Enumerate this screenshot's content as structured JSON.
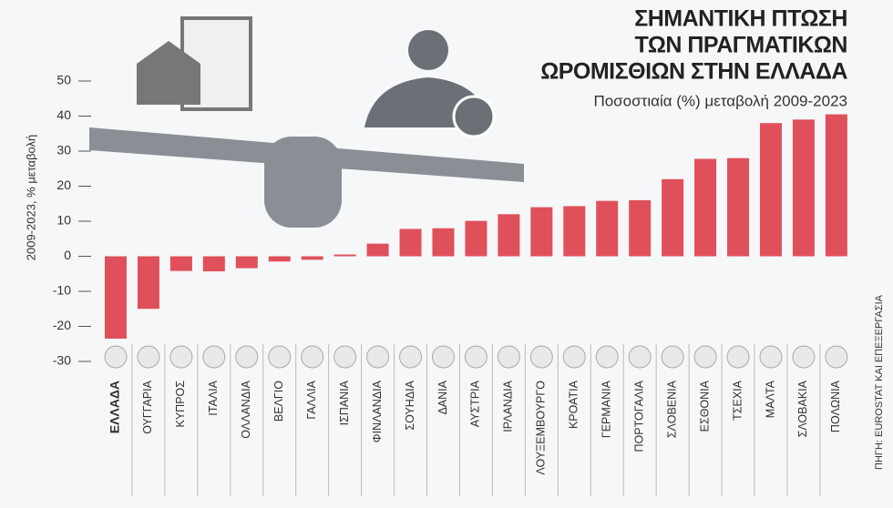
{
  "chart_data": {
    "type": "bar",
    "title": [
      "ΣΗΜΑΝΤΙΚΗ ΠΤΩΣΗ",
      "ΤΩΝ ΠΡΑΓΜΑΤΙΚΩΝ",
      "ΩΡΟΜΙΣΘΙΩΝ ΣΤΗΝ ΕΛΛΑΔΑ"
    ],
    "subtitle": "Ποσοστιαία (%) μεταβολή 2009-2023",
    "y_label": "2009-2023, % μεταβολή",
    "source": "ΠΗΓΗ: EUROSTAT ΚΑΙ ΕΠΕΞΕΡΓΑΣΙΑ",
    "categories": [
      "ΕΛΛΑΔΑ",
      "ΟΥΓΓΑΡΙΑ",
      "ΚΥΠΡΟΣ",
      "ΙΤΑΛΙΑ",
      "ΟΛΛΑΝΔΙΑ",
      "ΒΕΛΓΙΟ",
      "ΓΑΛΛΙΑ",
      "ΙΣΠΑΝΙΑ",
      "ΦΙΝΛΑΝΔΙΑ",
      "ΣΟΥΗΔΙΑ",
      "ΔΑΝΙΑ",
      "ΑΥΣΤΡΙΑ",
      "ΙΡΛΑΝΔΙΑ",
      "ΛΟΥΞΕΜΒΟΥΡΓΟ",
      "ΚΡΟΑΤΙΑ",
      "ΓΕΡΜΑΝΙΑ",
      "ΠΟΡΤΟΓΑΛΙΑ",
      "ΣΛΟΒΕΝΙΑ",
      "ΕΣΘΟΝΙΑ",
      "ΤΣΕΧΙΑ",
      "ΜΑΛΤΑ",
      "ΣΛΟΒΑΚΙΑ",
      "ΠΟΛΩΝΙΑ"
    ],
    "values": [
      -23.5,
      -15,
      -4.2,
      -4.3,
      -3.4,
      -1.5,
      -1,
      0.5,
      3.6,
      7.8,
      8,
      10.1,
      12,
      14,
      14.3,
      15.8,
      16,
      22,
      27.8,
      28,
      38,
      39,
      40.5
    ],
    "color": "#e0505a",
    "ylim": [
      -30,
      50
    ],
    "yticks": [
      -30,
      -20,
      -10,
      0,
      10,
      20,
      30,
      40,
      50
    ]
  }
}
